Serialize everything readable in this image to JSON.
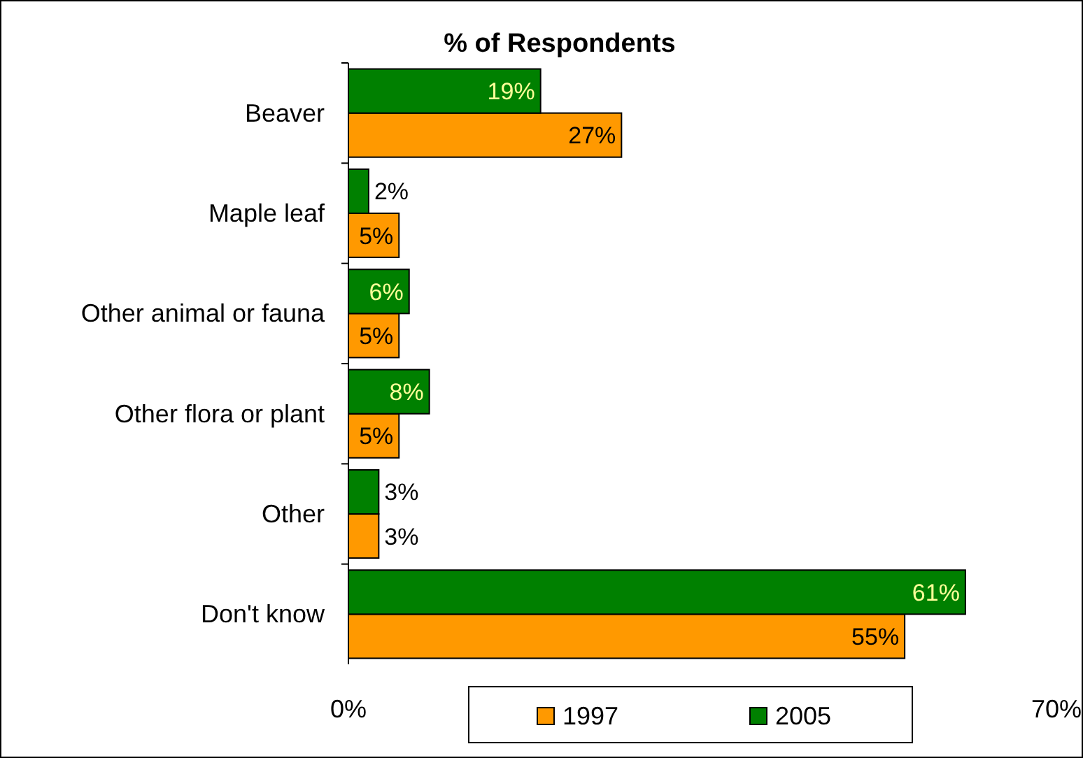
{
  "chart_data": {
    "type": "bar",
    "orientation": "horizontal",
    "title": "% of Respondents",
    "categories": [
      "Beaver",
      "Maple leaf",
      "Other animal or fauna",
      "Other flora or plant",
      "Other",
      "Don't know"
    ],
    "series": [
      {
        "name": "1997",
        "color": "#ff9900",
        "values": [
          27,
          5,
          5,
          5,
          3,
          55
        ],
        "value_labels": [
          "27%",
          "5%",
          "5%",
          "5%",
          "3%",
          "55%"
        ]
      },
      {
        "name": "2005",
        "color": "#008000",
        "values": [
          19,
          2,
          6,
          8,
          3,
          61
        ],
        "value_labels": [
          "19%",
          "2%",
          "6%",
          "8%",
          "3%",
          "61%"
        ]
      }
    ],
    "xlim": [
      0,
      70
    ],
    "xticks": [
      {
        "value": 0,
        "label": "0%"
      },
      {
        "value": 70,
        "label": "70%"
      }
    ],
    "legend": "bottom"
  }
}
